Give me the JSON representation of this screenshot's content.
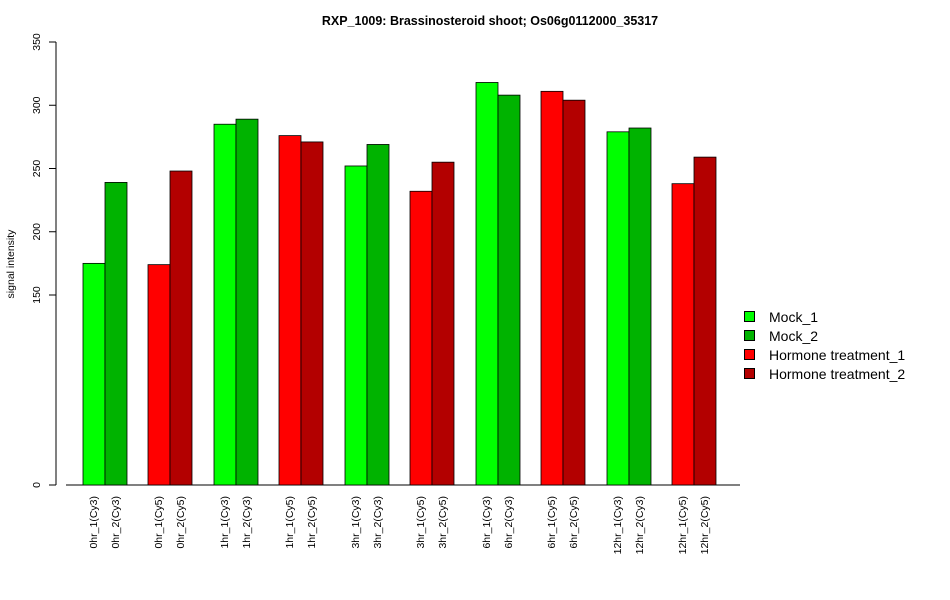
{
  "chart_data": {
    "type": "bar",
    "title": "RXP_1009: Brassinosteroid shoot; Os06g0112000_35317",
    "xlabel": "",
    "ylabel": "signal intensity",
    "y_axis_break": "axis jumps from 0 to 150",
    "yticks": [
      0,
      150,
      200,
      250,
      300,
      350
    ],
    "ylim": [
      0,
      350
    ],
    "grid": false,
    "legend_position": "right",
    "categories": [
      "0hr_1(Cy3)",
      "0hr_2(Cy3)",
      "0hr_1(Cy5)",
      "0hr_2(Cy5)",
      "1hr_1(Cy3)",
      "1hr_2(Cy3)",
      "1hr_1(Cy5)",
      "1hr_2(Cy5)",
      "3hr_1(Cy3)",
      "3hr_2(Cy3)",
      "3hr_1(Cy5)",
      "3hr_2(Cy5)",
      "6hr_1(Cy3)",
      "6hr_2(Cy3)",
      "6hr_1(Cy5)",
      "6hr_2(Cy5)",
      "12hr_1(Cy3)",
      "12hr_2(Cy3)",
      "12hr_1(Cy5)",
      "12hr_2(Cy5)"
    ],
    "values": [
      175,
      239,
      174,
      248,
      285,
      289,
      276,
      271,
      252,
      269,
      232,
      255,
      318,
      308,
      311,
      304,
      279,
      282,
      238,
      259
    ],
    "bar_series": [
      "Mock_1",
      "Mock_2",
      "Hormone treatment_1",
      "Hormone treatment_2",
      "Mock_1",
      "Mock_2",
      "Hormone treatment_1",
      "Hormone treatment_2",
      "Mock_1",
      "Mock_2",
      "Hormone treatment_1",
      "Hormone treatment_2",
      "Mock_1",
      "Mock_2",
      "Hormone treatment_1",
      "Hormone treatment_2",
      "Mock_1",
      "Mock_2",
      "Hormone treatment_1",
      "Hormone treatment_2"
    ],
    "legend": [
      {
        "name": "Mock_1",
        "color": "#00ff00"
      },
      {
        "name": "Mock_2",
        "color": "#00b300"
      },
      {
        "name": "Hormone treatment_1",
        "color": "#ff0000"
      },
      {
        "name": "Hormone treatment_2",
        "color": "#b30000"
      }
    ]
  }
}
